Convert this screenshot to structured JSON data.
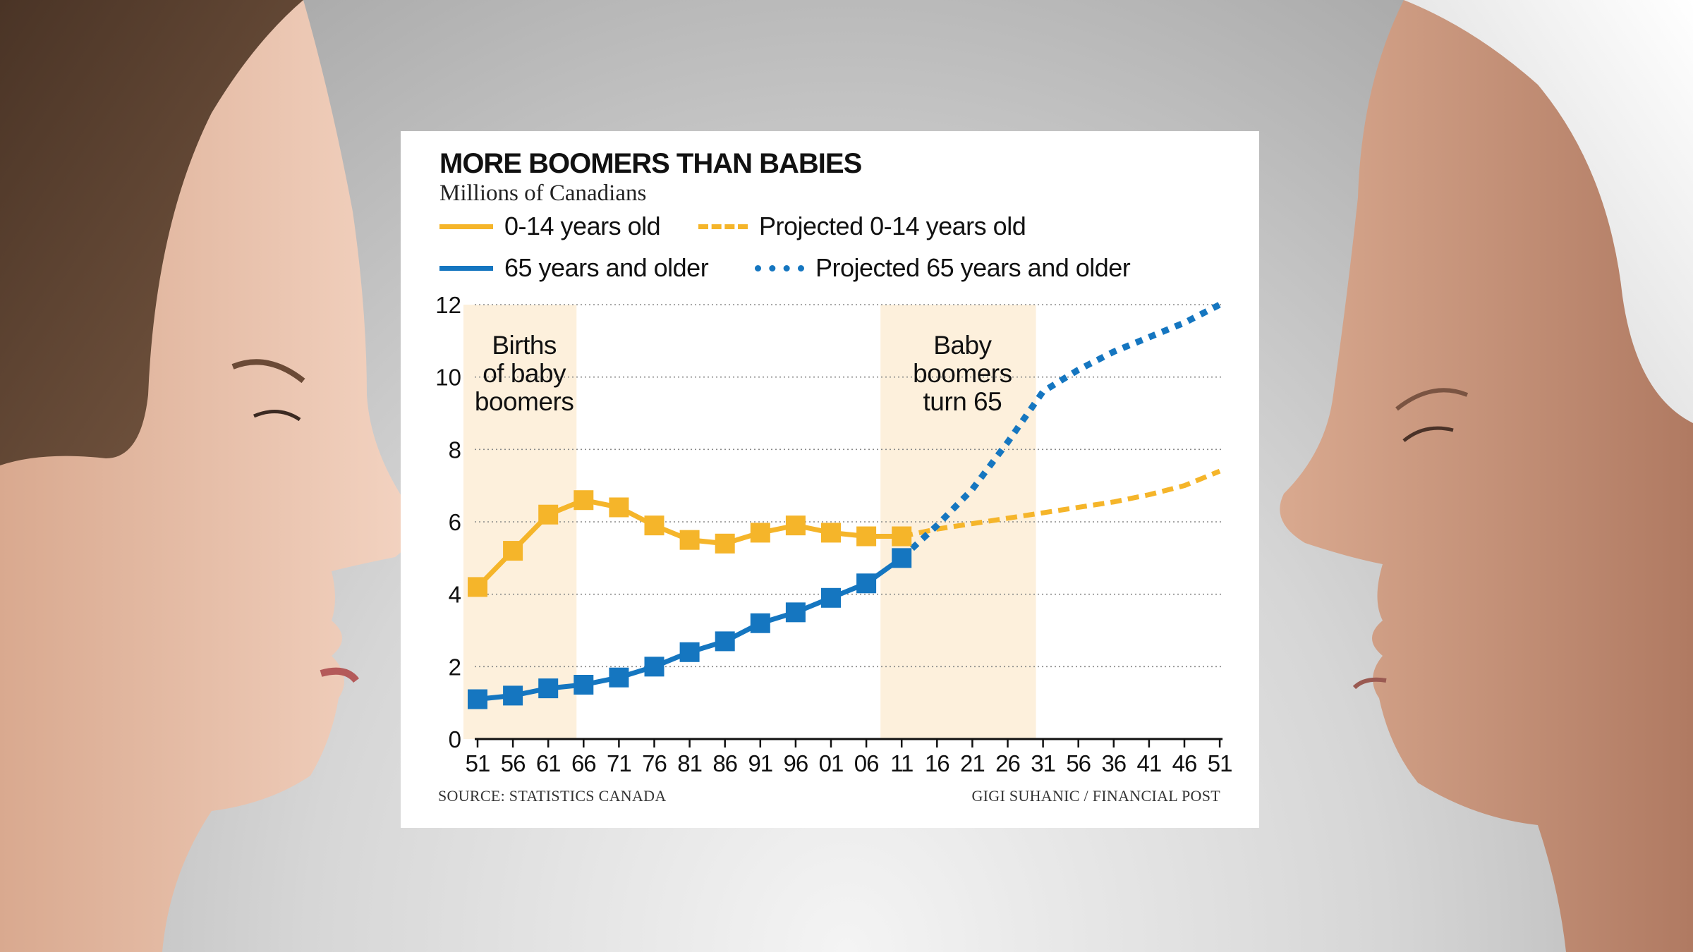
{
  "title": "MORE BOOMERS THAN BABIES",
  "subtitle": "Millions of Canadians",
  "legend": [
    {
      "label": "0-14 years old",
      "color": "#f5b52a",
      "style": "solid"
    },
    {
      "label": "Projected 0-14 years old",
      "color": "#f5b52a",
      "style": "dashed"
    },
    {
      "label": "65 years and older",
      "color": "#1576c0",
      "style": "solid"
    },
    {
      "label": "Projected 65 years and older",
      "color": "#1576c0",
      "style": "dotted"
    }
  ],
  "source": "SOURCE: STATISTICS CANADA",
  "credit": "GIGI SUHANIC / FINANCIAL POST",
  "chart_data": {
    "type": "line",
    "title": "MORE BOOMERS THAN BABIES",
    "subtitle": "Millions of Canadians",
    "ylim": [
      0,
      12
    ],
    "yticks": [
      0,
      2,
      4,
      6,
      8,
      10,
      12
    ],
    "xticks": [
      "51",
      "56",
      "61",
      "66",
      "71",
      "76",
      "81",
      "86",
      "91",
      "96",
      "01",
      "06",
      "11",
      "16",
      "21",
      "26",
      "31",
      "56",
      "36",
      "41",
      "46",
      "51"
    ],
    "grid": true,
    "legend_position": "top",
    "shaded_regions": [
      {
        "start_index": 0,
        "end_index": 2.8,
        "label": [
          "Births",
          "of baby",
          "boomers"
        ]
      },
      {
        "start_index": 11.8,
        "end_index": 15.8,
        "label": [
          "Baby",
          "boomers",
          "turn 65"
        ]
      }
    ],
    "series": [
      {
        "name": "0-14 years old",
        "color": "#f5b52a",
        "style": "solid",
        "markers": true,
        "x_index": [
          0,
          1,
          2,
          3,
          4,
          5,
          6,
          7,
          8,
          9,
          10,
          11,
          12
        ],
        "values": [
          4.2,
          5.2,
          6.2,
          6.6,
          6.4,
          5.9,
          5.5,
          5.4,
          5.7,
          5.9,
          5.7,
          5.6,
          5.6
        ]
      },
      {
        "name": "Projected 0-14 years old",
        "color": "#f5b52a",
        "style": "dashed",
        "markers": false,
        "x_index": [
          12,
          13,
          14,
          15,
          16,
          17,
          18,
          19,
          20,
          21
        ],
        "values": [
          5.6,
          5.8,
          5.95,
          6.1,
          6.25,
          6.4,
          6.55,
          6.75,
          7.0,
          7.4
        ]
      },
      {
        "name": "65 years and older",
        "color": "#1576c0",
        "style": "solid",
        "markers": true,
        "x_index": [
          0,
          1,
          2,
          3,
          4,
          5,
          6,
          7,
          8,
          9,
          10,
          11,
          12
        ],
        "values": [
          1.1,
          1.2,
          1.4,
          1.5,
          1.7,
          2.0,
          2.4,
          2.7,
          3.2,
          3.5,
          3.9,
          4.3,
          5.0
        ]
      },
      {
        "name": "Projected 65 years and older",
        "color": "#1576c0",
        "style": "dotted",
        "markers": false,
        "x_index": [
          12,
          13,
          14,
          15,
          16,
          17,
          18,
          19,
          20,
          21
        ],
        "values": [
          5.0,
          5.9,
          6.9,
          8.2,
          9.6,
          10.2,
          10.7,
          11.1,
          11.5,
          12.0
        ]
      }
    ]
  }
}
